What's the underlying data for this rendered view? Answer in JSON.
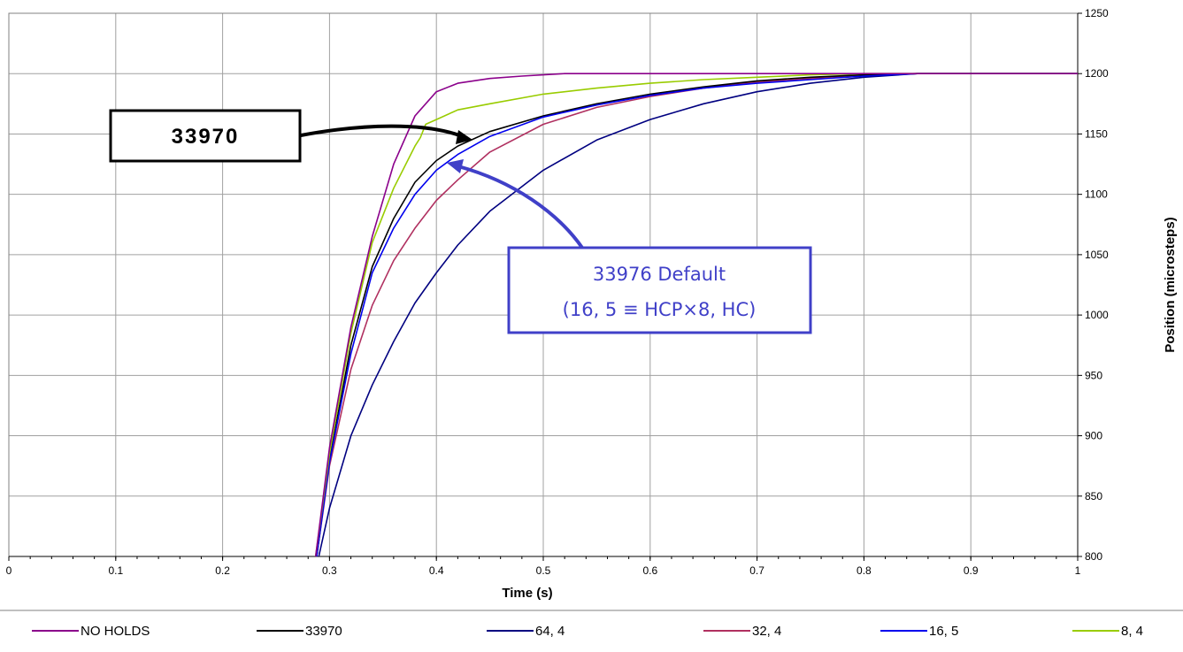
{
  "chart_data": {
    "type": "line",
    "xlabel": "Time (s)",
    "ylabel": "Position (microsteps)",
    "xlim": [
      0,
      1
    ],
    "ylim": [
      800,
      1250
    ],
    "x_ticks": [
      "0",
      "0.1",
      "0.2",
      "0.3",
      "0.4",
      "0.5",
      "0.6",
      "0.7",
      "0.8",
      "0.9",
      "1"
    ],
    "y_ticks": [
      "800",
      "850",
      "900",
      "950",
      "1000",
      "1050",
      "1100",
      "1150",
      "1200",
      "1250"
    ],
    "y_axis_side": "right",
    "grid": true,
    "legend_position": "bottom",
    "series": [
      {
        "name": "NO HOLDS",
        "color": "#8b008b",
        "x": [
          0.287,
          0.3,
          0.32,
          0.34,
          0.36,
          0.38,
          0.4,
          0.42,
          0.45,
          0.48,
          0.52,
          0.6,
          0.7,
          0.85,
          1.0
        ],
        "y": [
          800,
          890,
          990,
          1065,
          1125,
          1165,
          1185,
          1192,
          1196,
          1198,
          1200,
          1200,
          1200,
          1200,
          1200
        ]
      },
      {
        "name": "33970",
        "color": "#000000",
        "x": [
          0.288,
          0.3,
          0.32,
          0.34,
          0.36,
          0.38,
          0.4,
          0.42,
          0.45,
          0.5,
          0.55,
          0.6,
          0.65,
          0.7,
          0.75,
          0.8,
          0.85,
          1.0
        ],
        "y": [
          800,
          880,
          975,
          1040,
          1080,
          1110,
          1128,
          1140,
          1152,
          1165,
          1175,
          1183,
          1189,
          1194,
          1197,
          1199,
          1200,
          1200
        ]
      },
      {
        "name": "64, 4",
        "color": "#000080",
        "x": [
          0.29,
          0.3,
          0.32,
          0.34,
          0.36,
          0.38,
          0.4,
          0.42,
          0.45,
          0.5,
          0.55,
          0.6,
          0.65,
          0.7,
          0.75,
          0.8,
          0.85,
          1.0
        ],
        "y": [
          800,
          840,
          900,
          942,
          978,
          1010,
          1035,
          1058,
          1086,
          1120,
          1145,
          1162,
          1175,
          1185,
          1192,
          1197,
          1200,
          1200
        ]
      },
      {
        "name": "32, 4",
        "color": "#b03060",
        "x": [
          0.288,
          0.3,
          0.32,
          0.34,
          0.36,
          0.38,
          0.4,
          0.42,
          0.45,
          0.5,
          0.55,
          0.6,
          0.65,
          0.7,
          0.75,
          0.8,
          0.85,
          1.0
        ],
        "y": [
          800,
          875,
          955,
          1008,
          1045,
          1072,
          1095,
          1112,
          1135,
          1158,
          1172,
          1181,
          1188,
          1193,
          1196,
          1199,
          1200,
          1200
        ]
      },
      {
        "name": "16, 5",
        "color": "#0000ee",
        "x": [
          0.288,
          0.3,
          0.32,
          0.34,
          0.36,
          0.38,
          0.4,
          0.42,
          0.45,
          0.5,
          0.55,
          0.6,
          0.65,
          0.7,
          0.75,
          0.8,
          0.85,
          1.0
        ],
        "y": [
          800,
          878,
          968,
          1035,
          1072,
          1100,
          1120,
          1133,
          1148,
          1164,
          1174,
          1182,
          1188,
          1192,
          1195,
          1198,
          1200,
          1200
        ]
      },
      {
        "name": "8, 4",
        "color": "#99cc00",
        "x": [
          0.287,
          0.3,
          0.32,
          0.34,
          0.36,
          0.38,
          0.385,
          0.39,
          0.4,
          0.42,
          0.45,
          0.5,
          0.55,
          0.6,
          0.65,
          0.7,
          0.75,
          0.8,
          1.0
        ],
        "y": [
          800,
          885,
          985,
          1060,
          1105,
          1140,
          1147,
          1158,
          1162,
          1170,
          1175,
          1183,
          1188,
          1192,
          1195,
          1197,
          1199,
          1200,
          1200
        ]
      }
    ]
  },
  "callouts": {
    "black_label": "33970",
    "blue_label_line1": "33976 Default",
    "blue_label_line2": "(16, 5 ≡ HCP×8, HC)"
  }
}
